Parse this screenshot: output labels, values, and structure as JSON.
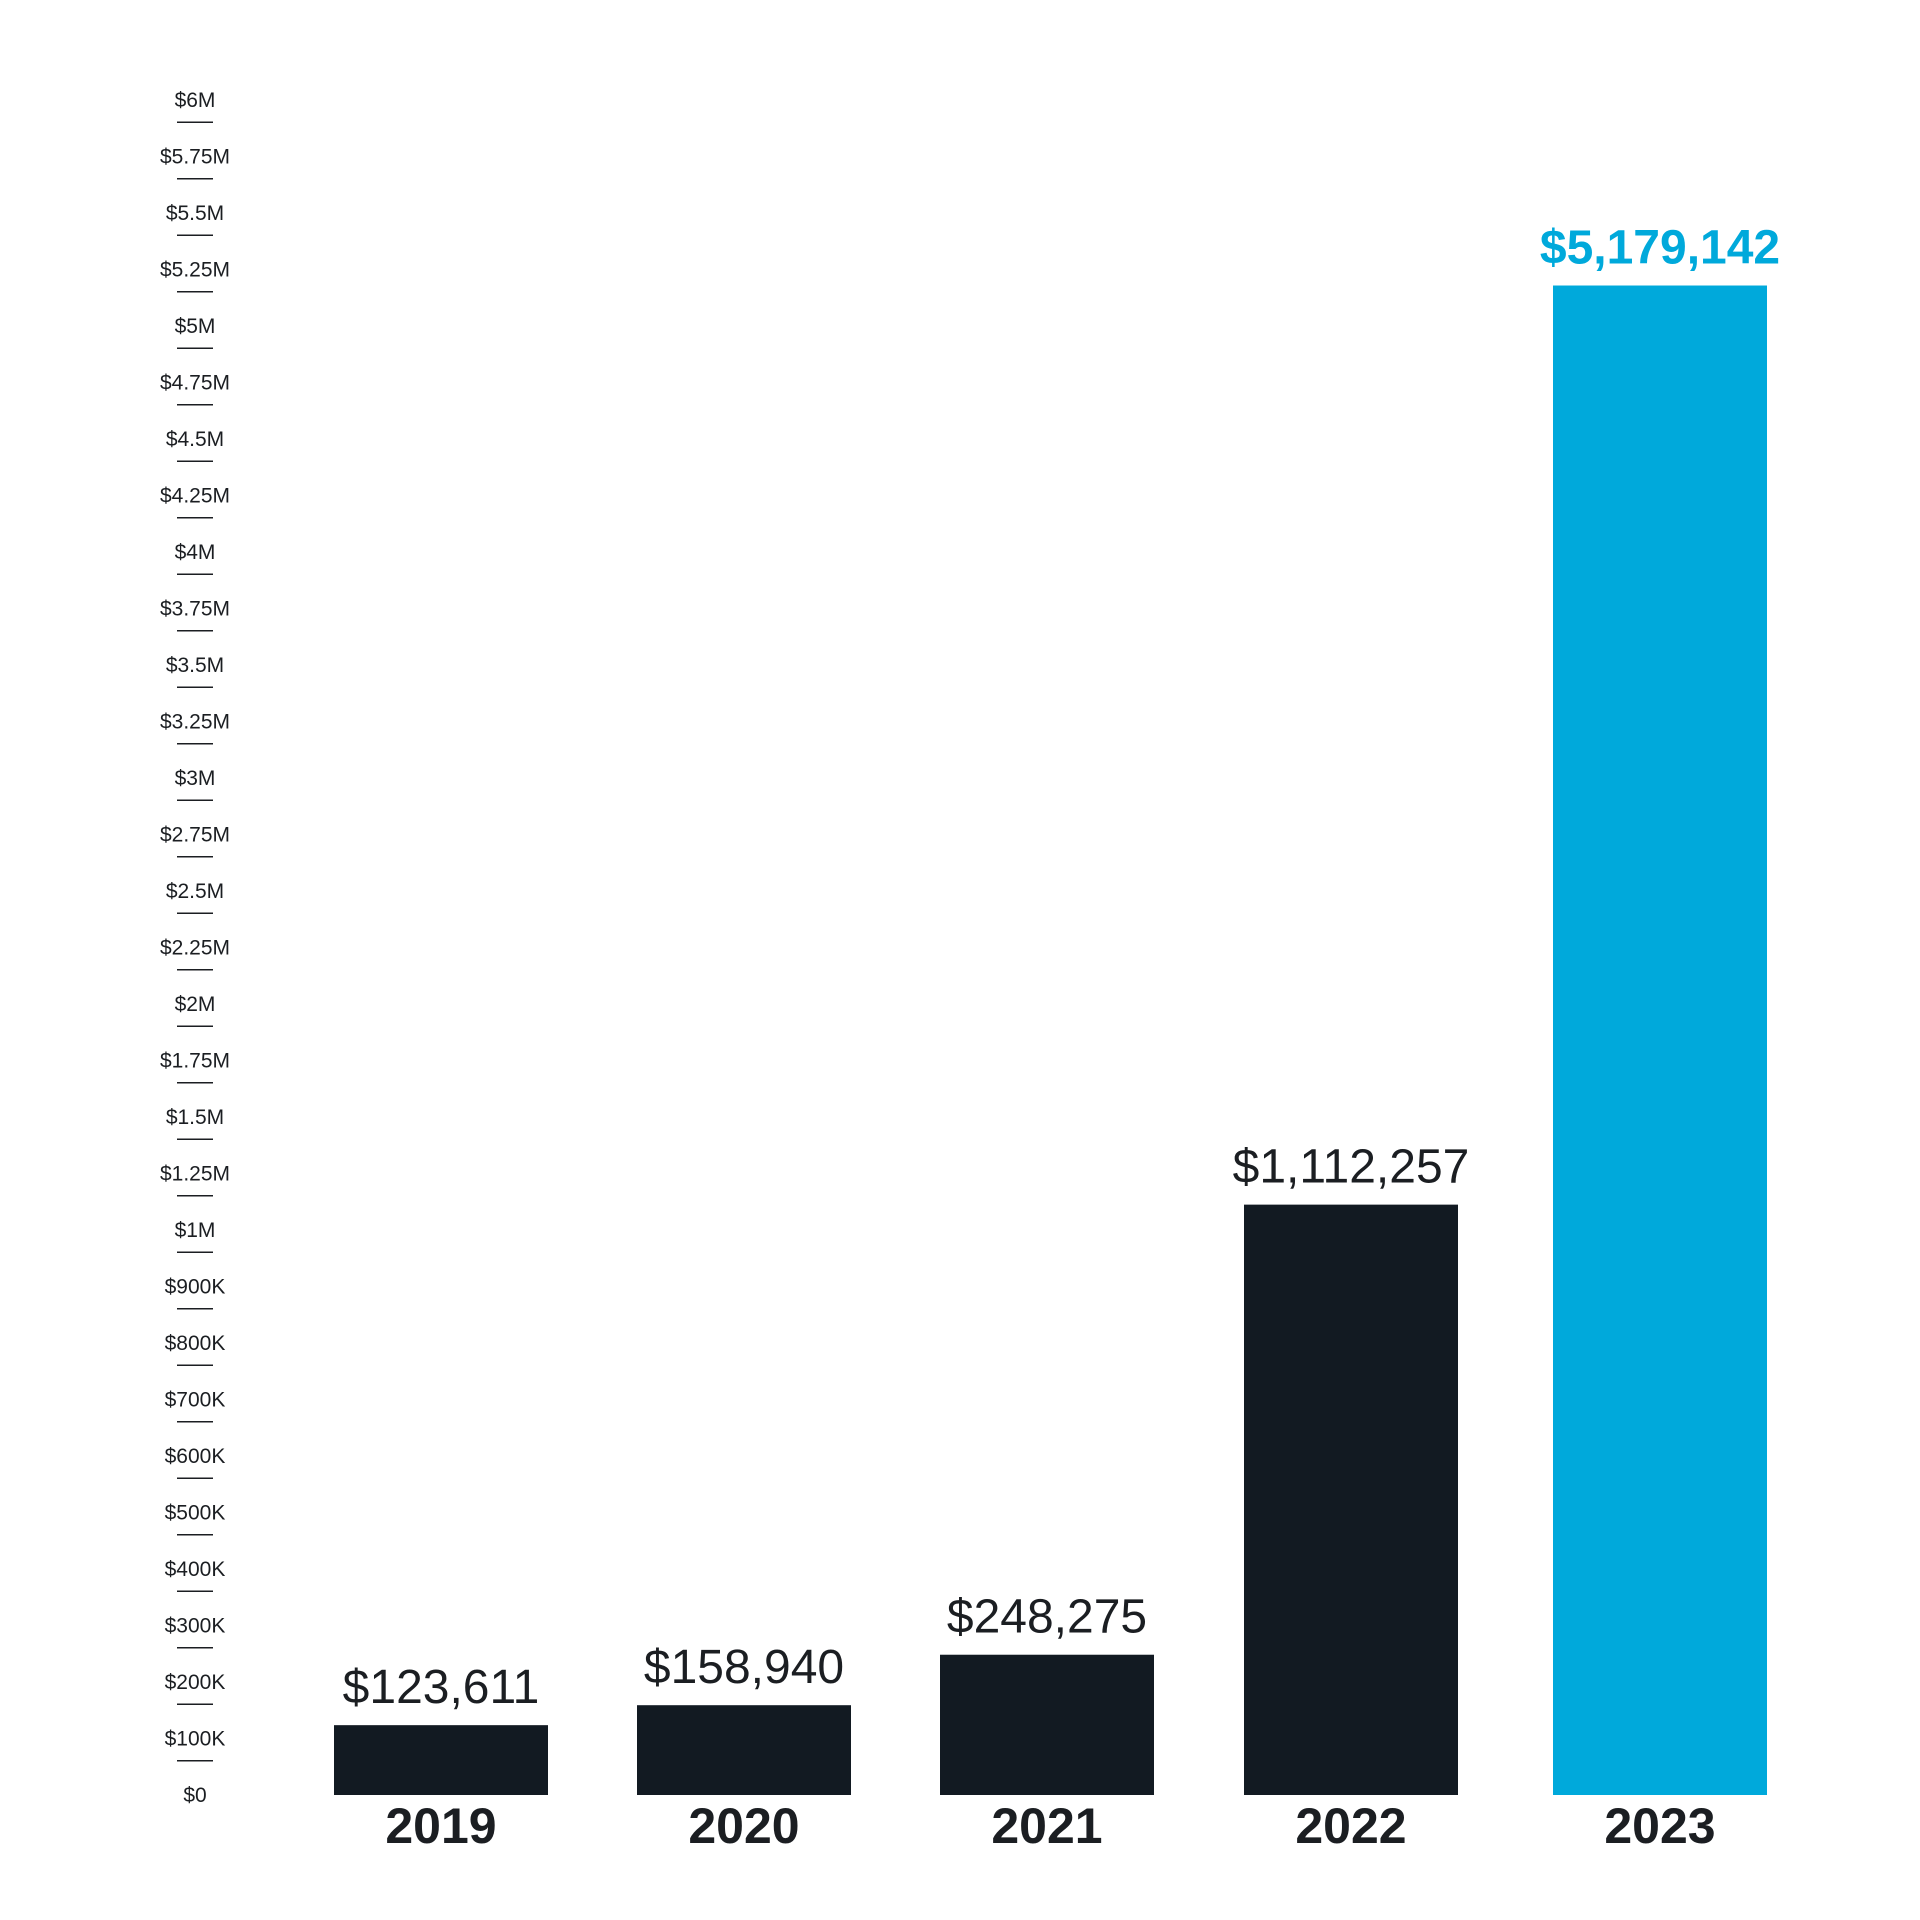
{
  "chart_data": {
    "type": "bar",
    "categories": [
      "2019",
      "2020",
      "2021",
      "2022",
      "2023"
    ],
    "values": [
      123611,
      158940,
      248275,
      1112257,
      5179142
    ],
    "value_labels": [
      "$123,611",
      "$158,940",
      "$248,275",
      "$1,112,257",
      "$5,179,142"
    ],
    "highlight_index": 4,
    "y_ticks": [
      {
        "value": 0,
        "label": "$0"
      },
      {
        "value": 100000,
        "label": "$100K"
      },
      {
        "value": 200000,
        "label": "$200K"
      },
      {
        "value": 300000,
        "label": "$300K"
      },
      {
        "value": 400000,
        "label": "$400K"
      },
      {
        "value": 500000,
        "label": "$500K"
      },
      {
        "value": 600000,
        "label": "$600K"
      },
      {
        "value": 700000,
        "label": "$700K"
      },
      {
        "value": 800000,
        "label": "$800K"
      },
      {
        "value": 900000,
        "label": "$900K"
      },
      {
        "value": 1000000,
        "label": "$1M"
      },
      {
        "value": 1250000,
        "label": "$1.25M"
      },
      {
        "value": 1500000,
        "label": "$1.5M"
      },
      {
        "value": 1750000,
        "label": "$1.75M"
      },
      {
        "value": 2000000,
        "label": "$2M"
      },
      {
        "value": 2250000,
        "label": "$2.25M"
      },
      {
        "value": 2500000,
        "label": "$2.5M"
      },
      {
        "value": 2750000,
        "label": "$2.75M"
      },
      {
        "value": 3000000,
        "label": "$3M"
      },
      {
        "value": 3250000,
        "label": "$3.25M"
      },
      {
        "value": 3500000,
        "label": "$3.5M"
      },
      {
        "value": 3750000,
        "label": "$3.75M"
      },
      {
        "value": 4000000,
        "label": "$4M"
      },
      {
        "value": 4250000,
        "label": "$4.25M"
      },
      {
        "value": 4500000,
        "label": "$4.5M"
      },
      {
        "value": 4750000,
        "label": "$4.75M"
      },
      {
        "value": 5000000,
        "label": "$5M"
      },
      {
        "value": 5250000,
        "label": "$5.25M"
      },
      {
        "value": 5500000,
        "label": "$5.5M"
      },
      {
        "value": 5750000,
        "label": "$5.75M"
      },
      {
        "value": 6000000,
        "label": "$6M"
      }
    ],
    "y_scale": "piecewise: 0 to 1M in 100K steps, then 1M to 6M in 250K steps, equal tick spacing",
    "ylim": [
      0,
      6000000
    ],
    "grid": false,
    "legend": "none",
    "colors": {
      "bar": "#121a22",
      "highlight_bar": "#00a9db",
      "text": "#1b1e22",
      "highlight_text": "#00a9db"
    }
  }
}
